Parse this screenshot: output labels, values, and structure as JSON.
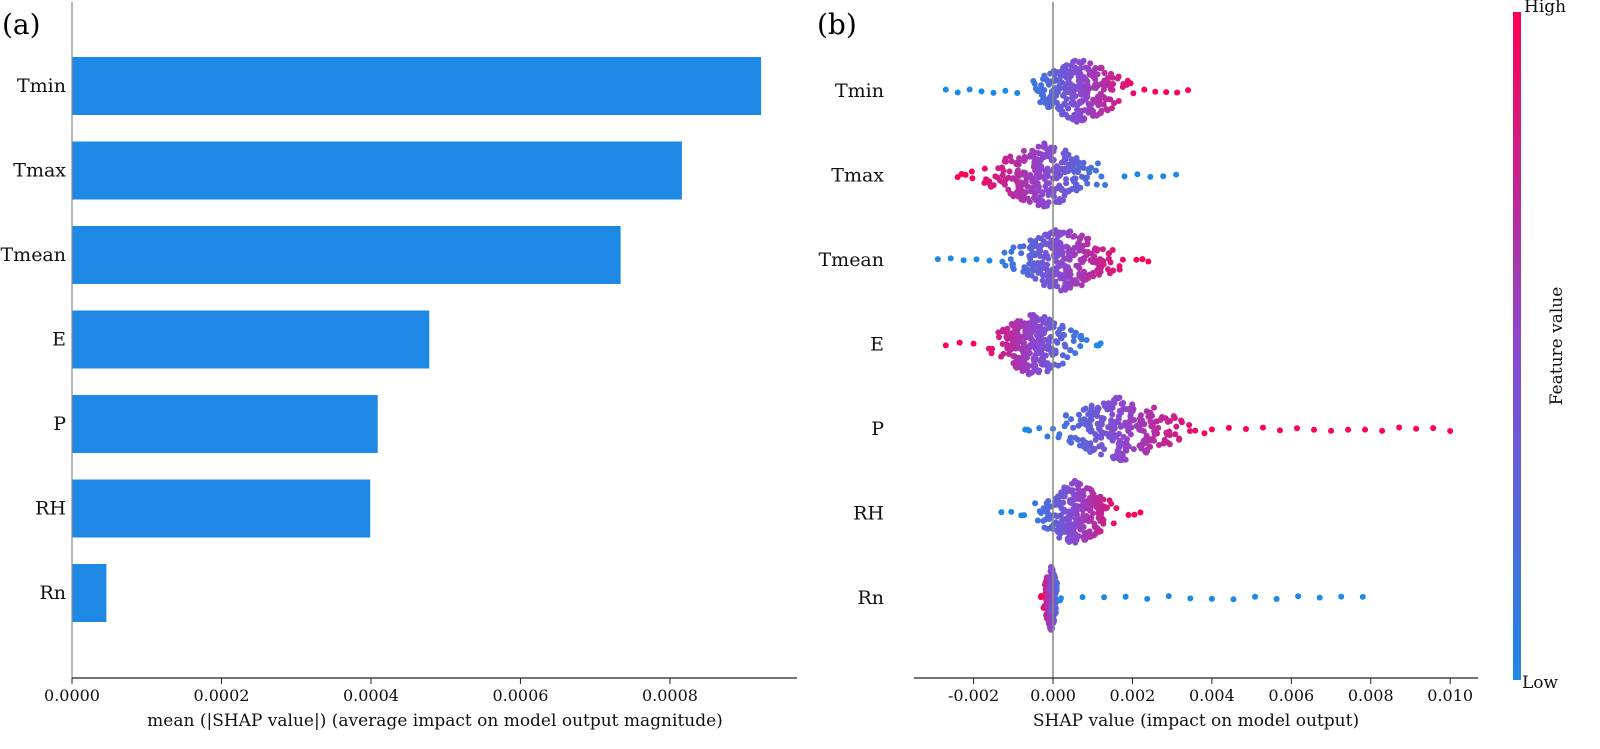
{
  "chart_data": [
    {
      "panel": "(a)",
      "type": "bar",
      "orientation": "horizontal",
      "categories": [
        "Tmin",
        "Tmax",
        "Tmean",
        "E",
        "P",
        "RH",
        "Rn"
      ],
      "values": [
        0.000922,
        0.000816,
        0.000734,
        0.000478,
        0.000409,
        0.000399,
        4.6e-05
      ],
      "xlabel": "mean (|SHAP value|) (average impact on model output magnitude)",
      "ylabel": "",
      "xlim": [
        0,
        0.00097
      ],
      "xticks": [
        0.0,
        0.0002,
        0.0004,
        0.0006,
        0.0008
      ],
      "xtick_labels": [
        "0.0000",
        "0.0002",
        "0.0004",
        "0.0006",
        "0.0008"
      ],
      "bar_color": "#1e88e5"
    },
    {
      "panel": "(b)",
      "type": "scatter",
      "subtype": "beeswarm",
      "features": [
        "Tmin",
        "Tmax",
        "Tmean",
        "E",
        "P",
        "RH",
        "Rn"
      ],
      "series": [
        {
          "name": "Tmin",
          "min": -0.0027,
          "max": 0.0034,
          "low_side": "negative",
          "spread": [
            -0.0009,
            0.0023
          ]
        },
        {
          "name": "Tmax",
          "min": -0.0024,
          "max": 0.0031,
          "low_side": "positive",
          "spread": [
            -0.0022,
            0.0018
          ]
        },
        {
          "name": "Tmean",
          "min": -0.0029,
          "max": 0.0024,
          "low_side": "negative",
          "spread": [
            -0.0016,
            0.0021
          ]
        },
        {
          "name": "E",
          "min": -0.0027,
          "max": 0.0012,
          "low_side": "positive",
          "spread": [
            -0.002,
            0.0011
          ]
        },
        {
          "name": "P",
          "min": -0.0007,
          "max": 0.01,
          "low_side": "negative",
          "spread": [
            -0.0006,
            0.004
          ]
        },
        {
          "name": "RH",
          "min": -0.0013,
          "max": 0.0022,
          "low_side": "negative",
          "spread": [
            -0.0008,
            0.0019
          ]
        },
        {
          "name": "Rn",
          "min": -0.0003,
          "max": 0.0078,
          "low_side": "positive",
          "spread": [
            -0.0003,
            0.0002
          ]
        }
      ],
      "xlabel": "SHAP value (impact on model output)",
      "xlim": [
        -0.0035,
        0.0107
      ],
      "xticks": [
        -0.002,
        0.0,
        0.002,
        0.004,
        0.006,
        0.008,
        0.01
      ],
      "xtick_labels": [
        "-0.002",
        "0.000",
        "0.002",
        "0.004",
        "0.006",
        "0.008",
        "0.010"
      ],
      "colorbar": {
        "label": "Feature value",
        "high_label": "High",
        "low_label": "Low",
        "high_color": "#ff0052",
        "low_color": "#1e88e5",
        "mid_color": "#8a48d0"
      }
    }
  ]
}
